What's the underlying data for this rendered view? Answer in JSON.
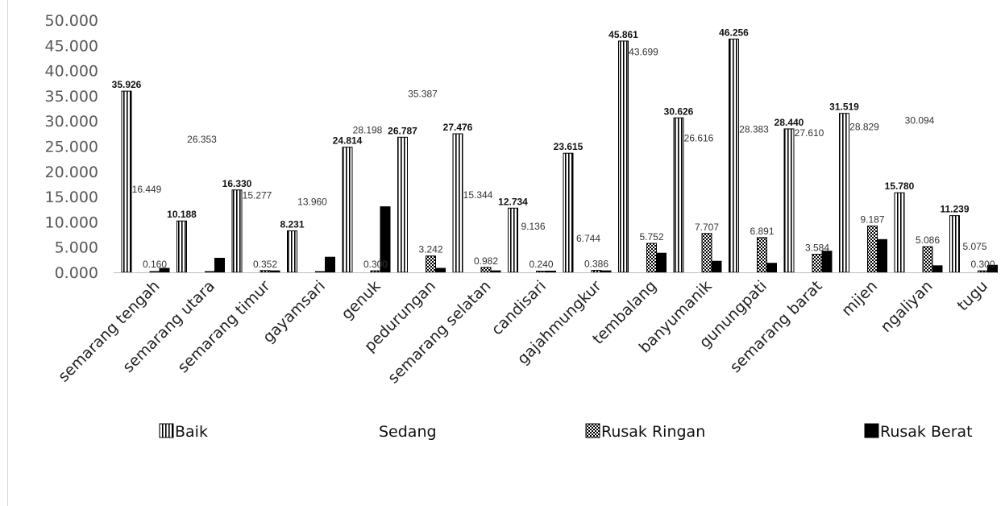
{
  "chart_data": {
    "type": "bar",
    "title": "",
    "xlabel": "",
    "ylabel": "",
    "ylim": [
      0,
      50
    ],
    "y_ticks": [
      "0.000",
      "5.000",
      "10.000",
      "15.000",
      "20.000",
      "25.000",
      "30.000",
      "35.000",
      "40.000",
      "45.000",
      "50.000"
    ],
    "grid": false,
    "legend_position": "bottom",
    "categories": [
      "semarang tengah",
      "semarang utara",
      "semarang timur",
      "gayamsari",
      "genuk",
      "pedurungan",
      "semarang selatan",
      "candisari",
      "gajahmungkur",
      "tembalang",
      "banyumanik",
      "gunungpati",
      "semarang barat",
      "mijen",
      "ngaliyan",
      "tugu"
    ],
    "series": [
      {
        "name": "Baik",
        "fill": "vertical-stripes",
        "values": [
          35.926,
          10.188,
          16.33,
          8.231,
          24.814,
          26.787,
          27.476,
          12.734,
          23.615,
          45.861,
          30.626,
          46.256,
          28.44,
          31.519,
          15.78,
          11.239
        ],
        "labels": [
          "35.926",
          "10.188",
          "16.330",
          "8.231",
          "24.814",
          "26.787",
          "27.476",
          "12.734",
          "23.615",
          "45.861",
          "30.626",
          "46.256",
          "28.440",
          "31.519",
          "15.780",
          "11.239"
        ]
      },
      {
        "name": "Sedang",
        "fill": "none",
        "values": [
          16.449,
          26.353,
          15.277,
          13.96,
          28.198,
          35.387,
          15.344,
          9.136,
          6.744,
          43.699,
          26.616,
          28.383,
          27.61,
          28.829,
          30.094,
          5.075
        ],
        "labels": [
          "16.449",
          "26.353",
          "15.277",
          "13.960",
          "28.198",
          "35.387",
          "15.344",
          "9.136",
          "6.744",
          "43.699",
          "26.616",
          "28.383",
          "27.610",
          "28.829",
          "30.094",
          "5.075"
        ]
      },
      {
        "name": "Rusak Ringan",
        "fill": "checker",
        "values": [
          0.16,
          0.15,
          0.352,
          0.15,
          0.3,
          3.242,
          0.982,
          0.24,
          0.386,
          5.752,
          7.707,
          6.891,
          3.584,
          9.187,
          5.086,
          0.3
        ],
        "labels": [
          "0.160",
          "",
          "0.352",
          "",
          "0.300",
          "3.242",
          "0.982",
          "0.240",
          "0.386",
          "5.752",
          "7.707",
          "6.891",
          "3.584",
          "9.187",
          "5.086",
          "0.300"
        ]
      },
      {
        "name": "Rusak Berat",
        "fill": "solid",
        "values": [
          0.8,
          2.8,
          0.3,
          3.0,
          13.0,
          0.8,
          0.3,
          0.25,
          0.3,
          3.8,
          2.2,
          1.8,
          4.2,
          6.5,
          1.3,
          1.4
        ],
        "labels": [
          "",
          "",
          "",
          "",
          "",
          "",
          "",
          "",
          "",
          "",
          "",
          "",
          "",
          "",
          "",
          ""
        ]
      }
    ],
    "colors": {
      "bar_ink": "#000000",
      "axis_text": "#595959",
      "category_text": "#222222"
    }
  }
}
